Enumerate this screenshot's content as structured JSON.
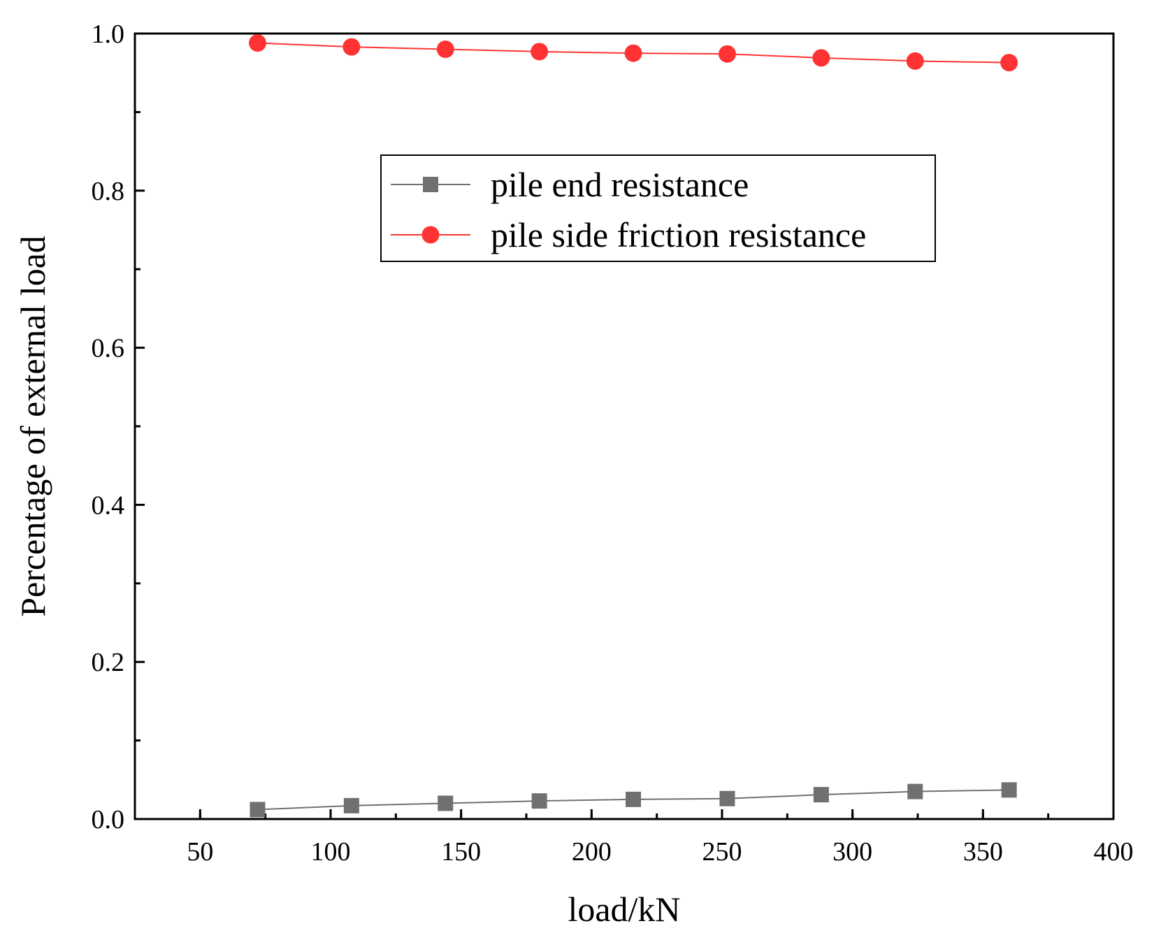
{
  "chart_data": {
    "type": "line",
    "title": "",
    "xlabel": "load/kN",
    "ylabel": "Percentage of external load",
    "xlim": [
      25,
      400
    ],
    "ylim": [
      0.0,
      1.0
    ],
    "x_ticks": [
      50,
      100,
      150,
      200,
      250,
      300,
      350,
      400
    ],
    "x_tick_labels": [
      "50",
      "100",
      "150",
      "200",
      "250",
      "300",
      "350",
      "400"
    ],
    "y_ticks": [
      0.0,
      0.2,
      0.4,
      0.6,
      0.8,
      1.0
    ],
    "y_tick_labels": [
      "0.0",
      "0.2",
      "0.4",
      "0.6",
      "0.8",
      "1.0"
    ],
    "grid": false,
    "legend_position": "top-right",
    "x": [
      72,
      108,
      144,
      180,
      216,
      252,
      288,
      324,
      360
    ],
    "series": [
      {
        "name": "pile end resistance",
        "marker": "square",
        "color": "#707070",
        "values": [
          0.012,
          0.017,
          0.02,
          0.023,
          0.025,
          0.026,
          0.031,
          0.035,
          0.037
        ]
      },
      {
        "name": "pile side friction resistance",
        "marker": "circle",
        "color": "#ff3333",
        "values": [
          0.988,
          0.983,
          0.98,
          0.977,
          0.975,
          0.974,
          0.969,
          0.965,
          0.963
        ]
      }
    ]
  }
}
